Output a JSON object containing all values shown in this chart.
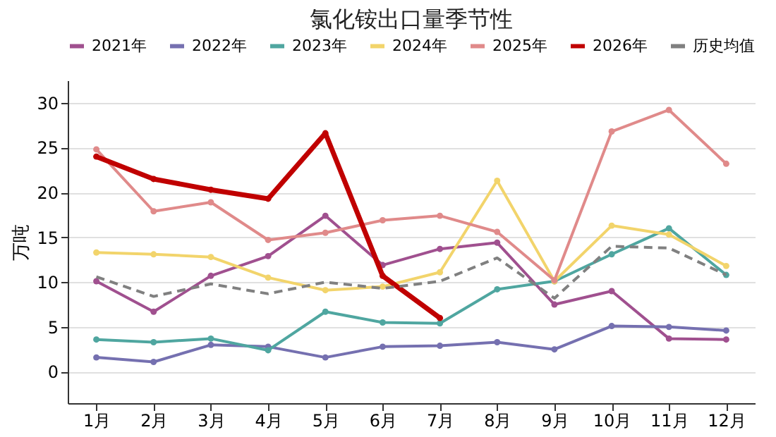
{
  "chart_data": {
    "type": "line",
    "title": "氯化铵出口量季节性",
    "ylabel": "万吨",
    "categories": [
      "1月",
      "2月",
      "3月",
      "4月",
      "5月",
      "6月",
      "7月",
      "8月",
      "9月",
      "10月",
      "11月",
      "12月"
    ],
    "ylim": [
      -3.5,
      32.5
    ],
    "yticks": [
      0,
      5,
      10,
      15,
      20,
      25,
      30
    ],
    "grid": "y",
    "legend": "top",
    "marker": "circle",
    "line_style": "solid",
    "series": [
      {
        "name": "2021年",
        "color": "#a0508f",
        "values": [
          10.1,
          6.7,
          10.7,
          12.9,
          17.4,
          11.9,
          13.7,
          14.4,
          7.5,
          9.0,
          3.7,
          3.6
        ]
      },
      {
        "name": "2022年",
        "color": "#7570b0",
        "values": [
          1.6,
          1.1,
          3.0,
          2.8,
          1.6,
          2.8,
          2.9,
          3.3,
          2.5,
          5.1,
          5.0,
          4.6
        ]
      },
      {
        "name": "2023年",
        "color": "#4fa6a0",
        "values": [
          3.6,
          3.3,
          3.7,
          2.4,
          6.7,
          5.5,
          5.4,
          9.2,
          10.1,
          13.1,
          16.0,
          10.8
        ]
      },
      {
        "name": "2024年",
        "color": "#f2d46b",
        "values": [
          13.3,
          13.1,
          12.8,
          10.5,
          9.1,
          9.5,
          11.1,
          21.3,
          10.1,
          16.3,
          15.3,
          11.8
        ]
      },
      {
        "name": "2025年",
        "color": "#e08a8a",
        "values": [
          24.8,
          17.9,
          18.9,
          14.7,
          15.5,
          16.9,
          17.4,
          15.6,
          10.2,
          26.8,
          29.2,
          23.2
        ]
      },
      {
        "name": "2026年",
        "color": "#c00000",
        "values": [
          24.0,
          21.5,
          20.3,
          19.3,
          26.6,
          10.7,
          6.0,
          null,
          null,
          null,
          null,
          null
        ]
      },
      {
        "name": "历史均值",
        "color": "#808080",
        "type": "line",
        "marker": "none",
        "line_style": "dashed",
        "values": [
          10.6,
          8.4,
          9.8,
          8.7,
          10.0,
          9.3,
          10.1,
          12.7,
          8.2,
          14.0,
          13.8,
          10.8
        ]
      }
    ]
  }
}
